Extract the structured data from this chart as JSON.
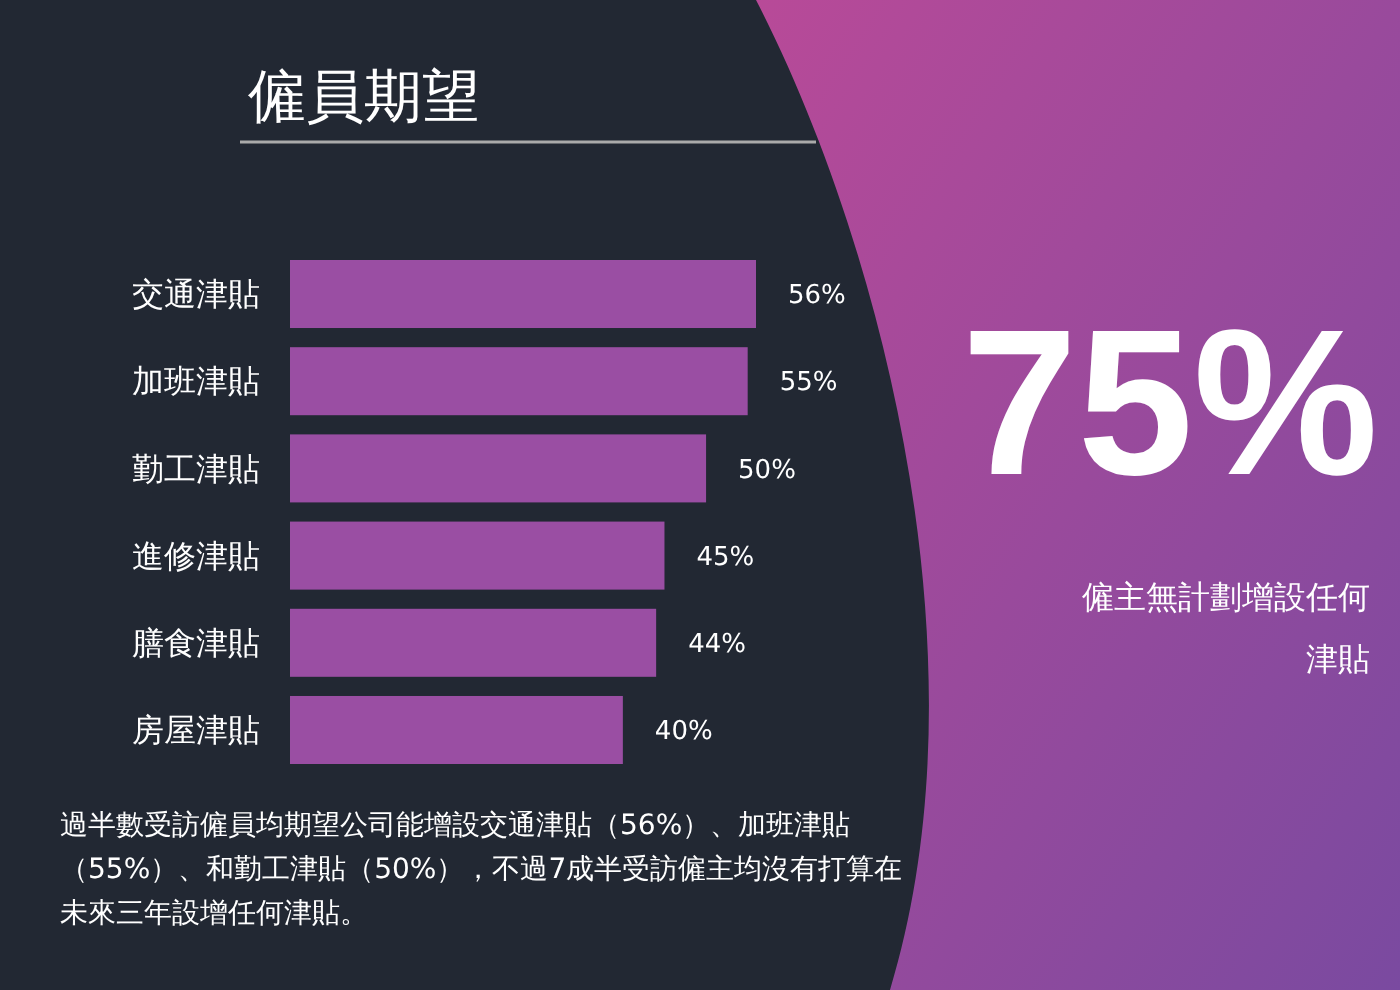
{
  "chart_data": {
    "type": "bar",
    "orientation": "horizontal",
    "title": "僱員期望",
    "categories": [
      "交通津貼",
      "加班津貼",
      "勤工津貼",
      "進修津貼",
      "膳食津貼",
      "房屋津貼"
    ],
    "values": [
      56,
      55,
      50,
      45,
      44,
      40
    ],
    "color": "#9a4ea3",
    "value_labels": [
      "56%",
      "55%",
      "50%",
      "45%",
      "44%",
      "40%"
    ],
    "annotations": [
      "75%",
      "僱主無計劃增設任何津貼",
      "過半數受訪僱員均期望公司能增設交通津貼（56%）、加班津貼（55%）、和勤工津貼（50%），不過7成半受訪僱主均沒有打算在未來三年設增任何津貼。"
    ]
  }
}
